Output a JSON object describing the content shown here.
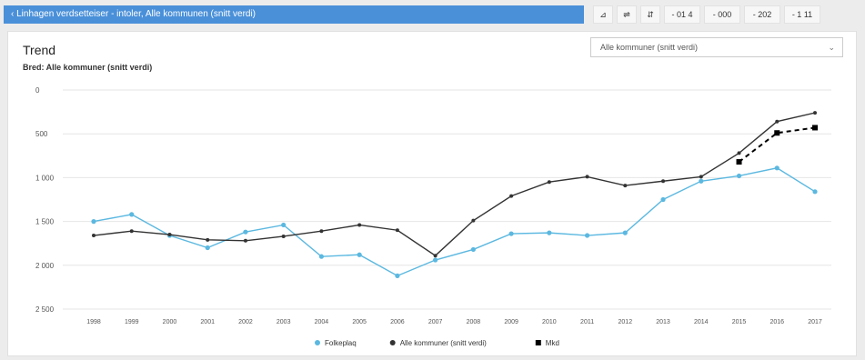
{
  "header": {
    "title": "‹ Linhagen verdsetteiser - intoler, Alle kommunen (snitt verdi)",
    "buttons": [
      "⊿",
      "⇌",
      "⇵",
      "- 01 4",
      "- 000",
      "- 202",
      "- 1 11"
    ]
  },
  "select": {
    "value": "Alle kommuner (snitt verdi)"
  },
  "colors": {
    "series1": "#5bb8e0",
    "series2": "#333333",
    "series3": "#000000"
  },
  "chart_data": {
    "type": "line",
    "title": "Trend",
    "subtitle": "Bred: Alle kommuner (snitt verdi)",
    "x": [
      "1998",
      "1999",
      "2000",
      "2001",
      "2002",
      "2003",
      "2004",
      "2005",
      "2006",
      "2007",
      "2008",
      "2009",
      "2010",
      "2011",
      "2012",
      "2013",
      "2014",
      "2015",
      "2016",
      "2017"
    ],
    "yticks": [
      "0",
      "500",
      "1 000",
      "1 500",
      "2 000",
      "2 500"
    ],
    "ylim": [
      0,
      2500
    ],
    "yreversed": true,
    "series": [
      {
        "name": "Folkeplaq",
        "style": "solid",
        "values": [
          1500,
          1420,
          1660,
          1800,
          1620,
          1540,
          1900,
          1880,
          2120,
          1940,
          1820,
          1640,
          1630,
          1660,
          1630,
          1250,
          1040,
          980,
          890,
          1160
        ]
      },
      {
        "name": "Alle kommuner (snitt verdi)",
        "style": "solid",
        "values": [
          1660,
          1610,
          1650,
          1710,
          1720,
          1670,
          1610,
          1540,
          1600,
          1890,
          1490,
          1210,
          1050,
          990,
          1090,
          1040,
          990,
          720,
          360,
          260
        ]
      },
      {
        "name": "Mkd",
        "style": "dashed",
        "values": [
          null,
          null,
          null,
          null,
          null,
          null,
          null,
          null,
          null,
          null,
          null,
          null,
          null,
          null,
          null,
          null,
          null,
          820,
          490,
          430
        ]
      }
    ],
    "legend_position": "bottom-center",
    "grid": true
  }
}
